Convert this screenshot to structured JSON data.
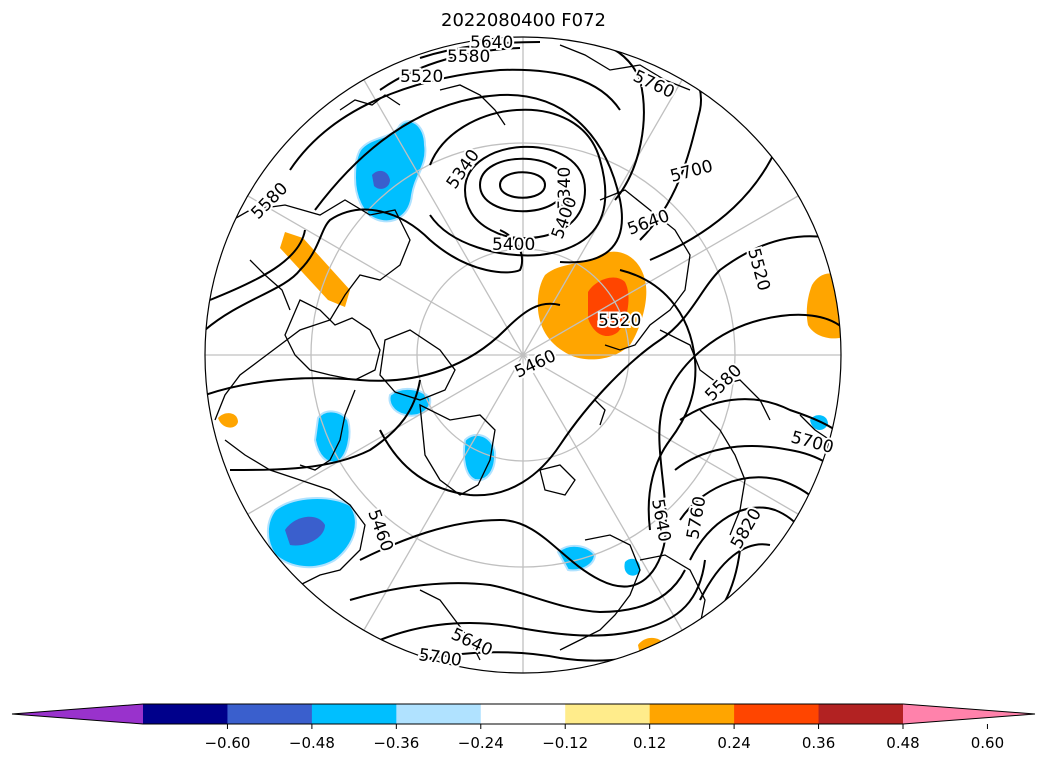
{
  "title": "2022080400 F072",
  "contour_labels": {
    "c5640_top": "5640",
    "c5580_top": "5580",
    "c5520_top": "5520",
    "c5760_tr": "5760",
    "c5340_a": "5340",
    "c5340_b": "5340",
    "c5400_a": "5400",
    "c5400_b": "5400",
    "c5700_r": "5700",
    "c5640_r": "5640",
    "c5520_r": "5520",
    "c5580_l": "5580",
    "c5520_mid": "5520",
    "c5460_center": "5460",
    "c5580_r2": "5580",
    "c5700_r2": "5700",
    "c5460_l": "5460",
    "c5640_b": "5640",
    "c5760_b": "5760",
    "c5820_b": "5820",
    "c5640_bottom": "5640",
    "c5700_bottom": "5700"
  },
  "colorbar": {
    "colors": [
      "#9932cc",
      "#00008b",
      "#3a5fcd",
      "#00bfff",
      "#b0e2ff",
      "#ffffff",
      "#ffec8b",
      "#ffa500",
      "#ff4500",
      "#b22222",
      "#ff82ab"
    ],
    "ticks": [
      "−0.60",
      "−0.48",
      "−0.36",
      "−0.24",
      "−0.12",
      "0.12",
      "0.24",
      "0.36",
      "0.48",
      "0.60"
    ]
  }
}
